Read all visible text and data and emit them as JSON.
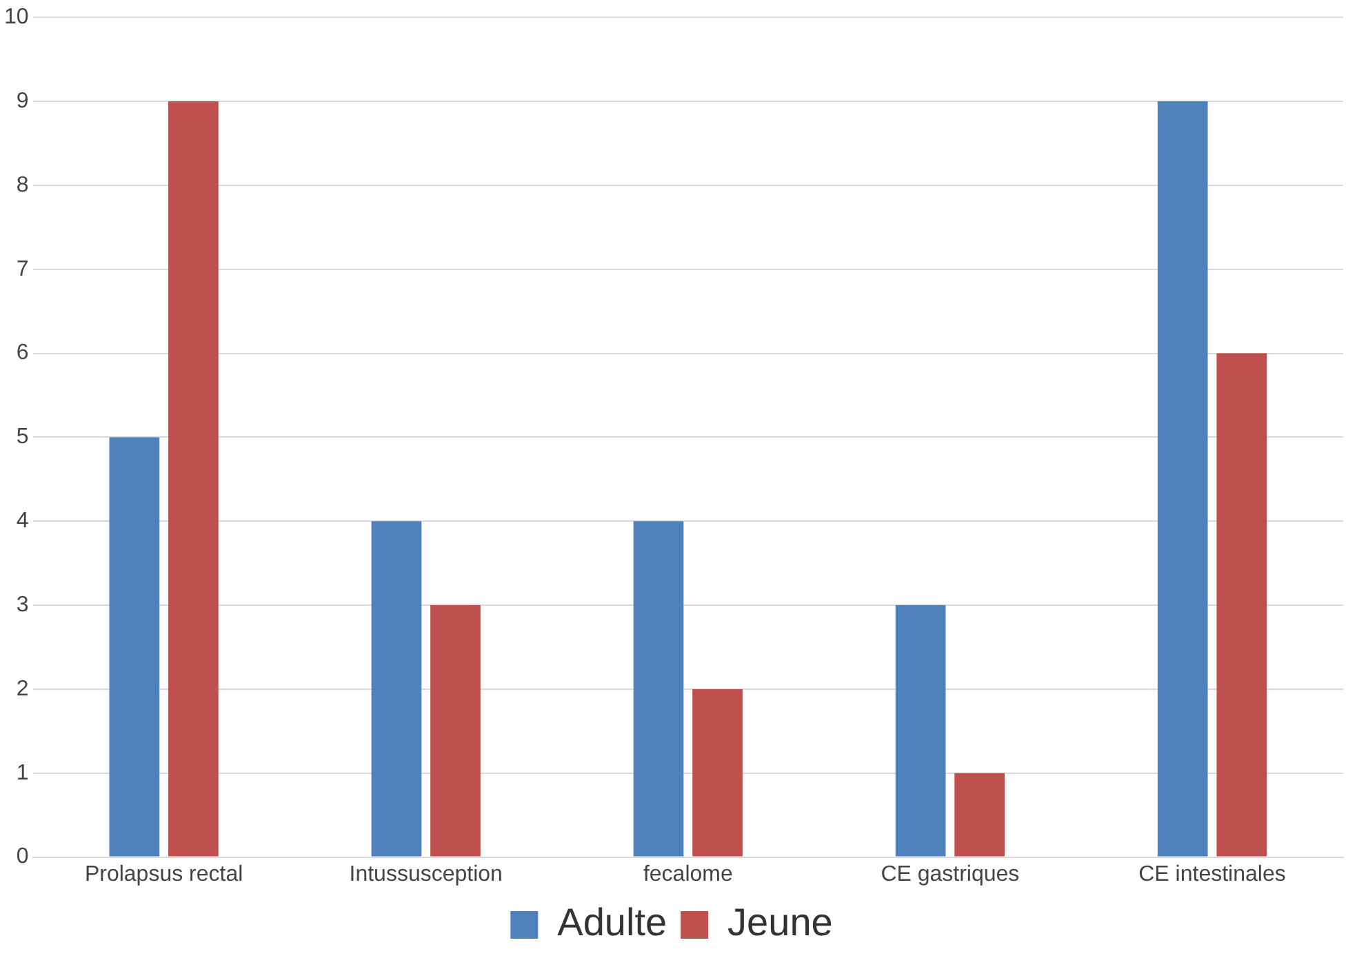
{
  "chart_data": {
    "type": "bar",
    "categories": [
      "Prolapsus rectal",
      "Intussusception",
      "fecalome",
      "CE gastriques",
      "CE intestinales"
    ],
    "series": [
      {
        "name": "Adulte",
        "color": "#4f81bd",
        "values": [
          5,
          4,
          4,
          3,
          9
        ]
      },
      {
        "name": "Jeune",
        "color": "#c0504d",
        "values": [
          9,
          3,
          2,
          1,
          6
        ]
      }
    ],
    "ylim": [
      0,
      10
    ],
    "yticks": [
      0,
      1,
      2,
      3,
      4,
      5,
      6,
      7,
      8,
      9,
      10
    ],
    "grid": "y",
    "legend": "bottom"
  }
}
